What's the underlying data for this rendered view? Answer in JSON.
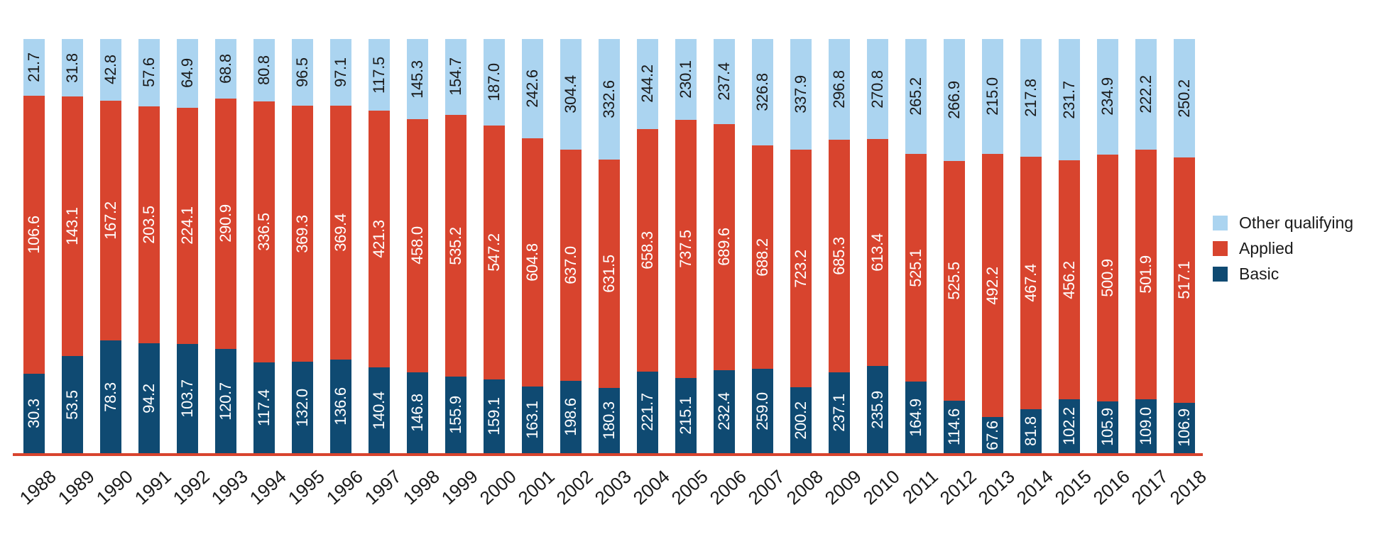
{
  "chart_data": {
    "type": "bar",
    "stacked": true,
    "normalized_to_100_percent": true,
    "title": "",
    "xlabel": "",
    "ylabel": "",
    "grid": false,
    "legend_position": "right",
    "axis_line_color": "#D8442E",
    "categories": [
      "1988",
      "1989",
      "1990",
      "1991",
      "1992",
      "1993",
      "1994",
      "1995",
      "1996",
      "1997",
      "1998",
      "1999",
      "2000",
      "2001",
      "2002",
      "2003",
      "2004",
      "2005",
      "2006",
      "2007",
      "2008",
      "2009",
      "2010",
      "2011",
      "2012",
      "2013",
      "2014",
      "2015",
      "2016",
      "2017",
      "2018"
    ],
    "series": [
      {
        "name": "Basic",
        "color": "#0F4A72",
        "label_color": "#FFFFFF",
        "values": [
          30.3,
          53.5,
          78.3,
          94.2,
          103.7,
          120.7,
          117.4,
          132.0,
          136.6,
          140.4,
          146.8,
          155.9,
          159.1,
          163.1,
          198.6,
          180.3,
          221.7,
          215.1,
          232.4,
          259.0,
          200.2,
          237.1,
          235.9,
          164.9,
          114.6,
          67.6,
          81.8,
          102.2,
          105.9,
          109.0,
          106.9
        ]
      },
      {
        "name": "Applied",
        "color": "#D8442E",
        "label_color": "#FFFFFF",
        "values": [
          106.6,
          143.1,
          167.2,
          203.5,
          224.1,
          290.9,
          336.5,
          369.3,
          369.4,
          421.3,
          458.0,
          535.2,
          547.2,
          604.8,
          637.0,
          631.5,
          658.3,
          737.5,
          689.6,
          688.2,
          723.2,
          685.3,
          613.4,
          525.1,
          525.5,
          492.2,
          467.4,
          456.2,
          500.9,
          501.9,
          517.1
        ]
      },
      {
        "name": "Other qualifying",
        "color": "#ABD4F0",
        "label_color": "#1A1A1A",
        "values": [
          21.7,
          31.8,
          42.8,
          57.6,
          64.9,
          68.8,
          80.8,
          96.5,
          97.1,
          117.5,
          145.3,
          154.7,
          187.0,
          242.6,
          304.4,
          332.6,
          244.2,
          230.1,
          237.4,
          326.8,
          337.9,
          296.8,
          270.8,
          265.2,
          266.9,
          215.0,
          217.8,
          231.7,
          234.9,
          222.2,
          250.2
        ]
      }
    ]
  },
  "legend": {
    "items": [
      {
        "label": "Other qualifying"
      },
      {
        "label": "Applied"
      },
      {
        "label": "Basic"
      }
    ]
  }
}
